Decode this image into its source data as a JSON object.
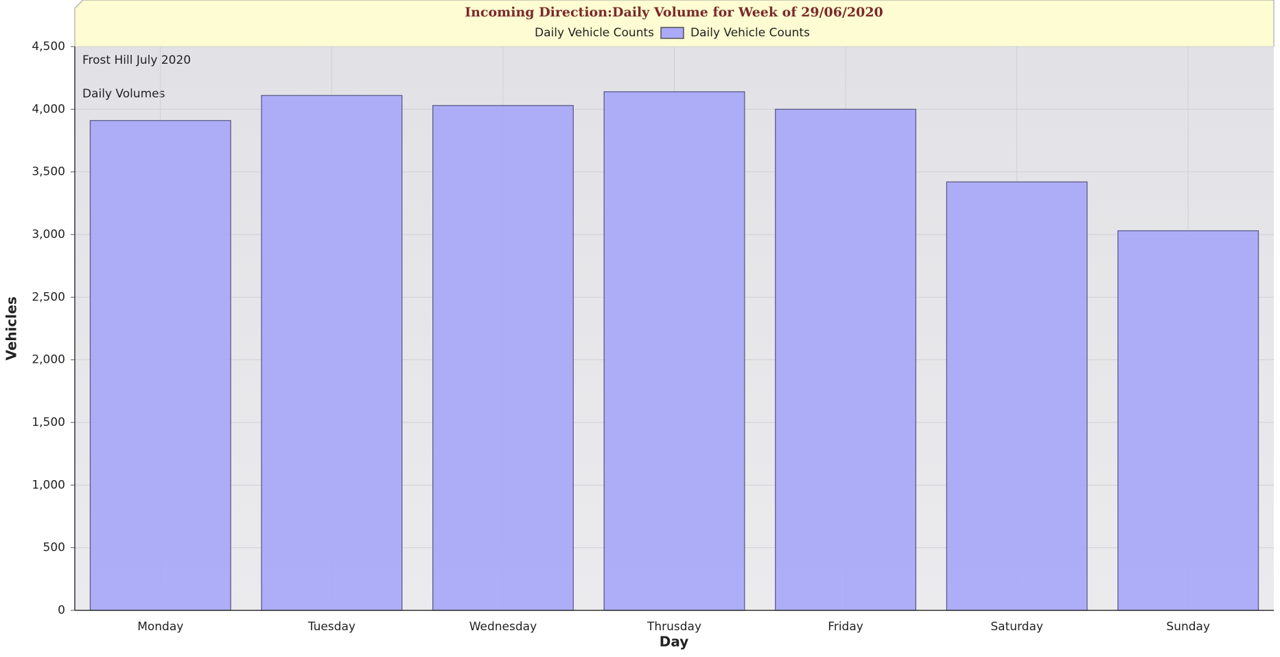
{
  "chart_data": {
    "type": "bar",
    "title": "Incoming Direction:Daily Volume for Week of 29/06/2020",
    "legend_title": "Daily Vehicle Counts",
    "annotations": [
      "Frost Hill July 2020",
      "Daily Volumes"
    ],
    "x_label": "Day",
    "y_label": "Vehicles",
    "categories": [
      "Monday",
      "Tuesday",
      "Wednesday",
      "Thrusday",
      "Friday",
      "Saturday",
      "Sunday"
    ],
    "series": [
      {
        "name": "Daily Vehicle Counts",
        "color": "#aaaaf8",
        "values": [
          3910,
          4110,
          4030,
          4140,
          4000,
          3420,
          3030
        ]
      }
    ],
    "ylim": [
      0,
      4500
    ],
    "yticks": [
      0,
      500,
      {
        "value": 1000,
        "label": "1,000"
      },
      {
        "value": 1500,
        "label": "1,500"
      },
      {
        "value": 2000,
        "label": "2,000"
      },
      {
        "value": 2500,
        "label": "2,500"
      },
      {
        "value": 3000,
        "label": "3,000"
      },
      {
        "value": 3500,
        "label": "3,500"
      },
      {
        "value": 4000,
        "label": "4,000"
      },
      {
        "value": 4500,
        "label": "4,500"
      }
    ],
    "grid": true
  }
}
